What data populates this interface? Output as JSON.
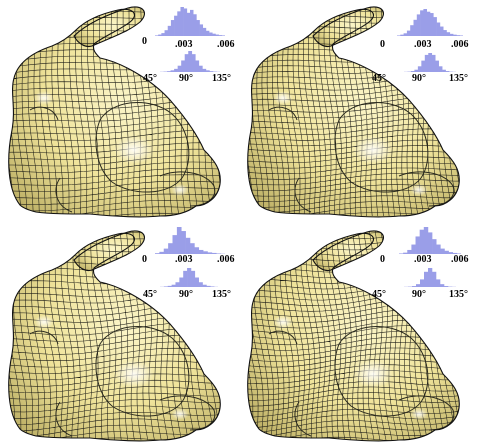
{
  "colors": {
    "mesh_fill": "#f3e9a2",
    "mesh_shade": "#c9bd6e",
    "mesh_line": "#1a1a14",
    "histogram": "#9a9ee8"
  },
  "panels": [
    {
      "id": "top-left",
      "histograms": {
        "edge_length": {
          "ticks": [
            "0",
            ".003",
            ".006"
          ],
          "distribution": [
            0.02,
            0.05,
            0.1,
            0.2,
            0.35,
            0.55,
            0.7,
            0.85,
            1.0,
            0.95,
            0.8,
            0.9,
            0.75,
            0.55,
            0.4,
            0.28,
            0.18,
            0.12,
            0.08,
            0.05,
            0.03,
            0.02
          ]
        },
        "angle": {
          "ticks": [
            "45°",
            "90°",
            "135°"
          ],
          "distribution": [
            0.01,
            0.02,
            0.04,
            0.08,
            0.15,
            0.3,
            0.55,
            0.85,
            1.0,
            0.85,
            0.55,
            0.3,
            0.15,
            0.08,
            0.04,
            0.02,
            0.01
          ]
        }
      }
    },
    {
      "id": "top-right",
      "histograms": {
        "edge_length": {
          "ticks": [
            "0",
            ".003",
            ".006"
          ],
          "distribution": [
            0.02,
            0.05,
            0.1,
            0.2,
            0.4,
            0.6,
            0.8,
            0.95,
            1.0,
            0.9,
            0.85,
            0.7,
            0.5,
            0.35,
            0.22,
            0.14,
            0.08,
            0.05,
            0.03,
            0.02
          ]
        },
        "angle": {
          "ticks": [
            "45°",
            "90°",
            "135°"
          ],
          "distribution": [
            0.01,
            0.02,
            0.05,
            0.12,
            0.3,
            0.6,
            0.9,
            1.0,
            0.9,
            0.6,
            0.3,
            0.12,
            0.05,
            0.02,
            0.01
          ]
        }
      }
    },
    {
      "id": "bottom-left",
      "histograms": {
        "edge_length": {
          "ticks": [
            "0",
            ".003",
            ".006"
          ],
          "distribution": [
            0.03,
            0.08,
            0.2,
            0.4,
            0.7,
            1.0,
            0.85,
            0.6,
            0.4,
            0.25,
            0.15,
            0.1,
            0.06,
            0.04,
            0.02,
            0.01
          ]
        },
        "angle": {
          "ticks": [
            "45°",
            "90°",
            "135°"
          ],
          "distribution": [
            0.01,
            0.03,
            0.06,
            0.12,
            0.25,
            0.5,
            0.85,
            1.0,
            0.85,
            0.5,
            0.25,
            0.12,
            0.06,
            0.03,
            0.01
          ]
        }
      }
    },
    {
      "id": "bottom-right",
      "histograms": {
        "edge_length": {
          "ticks": [
            "0",
            ".003",
            ".006"
          ],
          "distribution": [
            0.02,
            0.05,
            0.15,
            0.35,
            0.65,
            0.9,
            1.0,
            0.8,
            0.55,
            0.35,
            0.2,
            0.12,
            0.07,
            0.04,
            0.02
          ]
        },
        "angle": {
          "ticks": [
            "45°",
            "90°",
            "135°"
          ],
          "distribution": [
            0.01,
            0.02,
            0.05,
            0.15,
            0.4,
            0.8,
            1.0,
            0.8,
            0.4,
            0.15,
            0.05,
            0.02,
            0.01
          ]
        }
      }
    }
  ]
}
